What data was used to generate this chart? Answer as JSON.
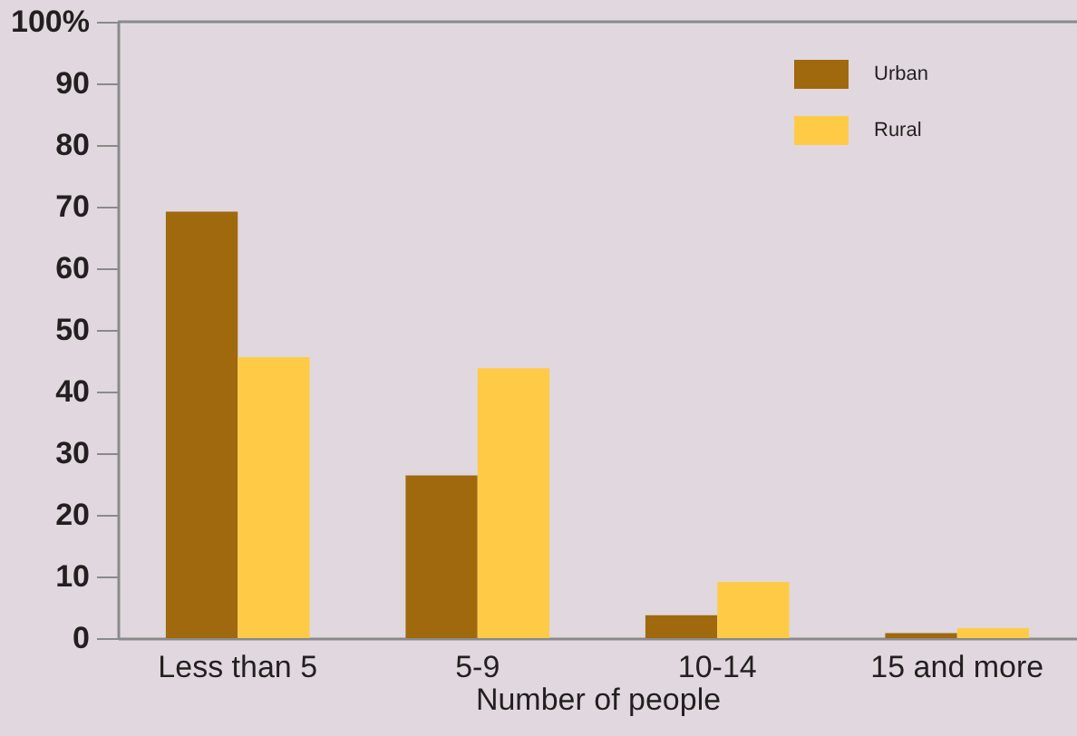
{
  "chart_data": {
    "type": "bar",
    "xlabel": "Number of people",
    "categories": [
      "Less than 5",
      "5-9",
      "10-14",
      "15 and more"
    ],
    "series": [
      {
        "name": "Urban",
        "color": "#a0690d",
        "values": [
          69.2,
          26.4,
          3.7,
          0.8
        ]
      },
      {
        "name": "Rural",
        "color": "#ffcb47",
        "values": [
          45.6,
          43.8,
          9.1,
          1.6
        ]
      }
    ],
    "ylim": [
      0,
      100
    ],
    "yticks": [
      0,
      10,
      20,
      30,
      40,
      50,
      60,
      70,
      80,
      90,
      {
        "value": 100,
        "label": "100%"
      }
    ],
    "legend": "top right"
  }
}
